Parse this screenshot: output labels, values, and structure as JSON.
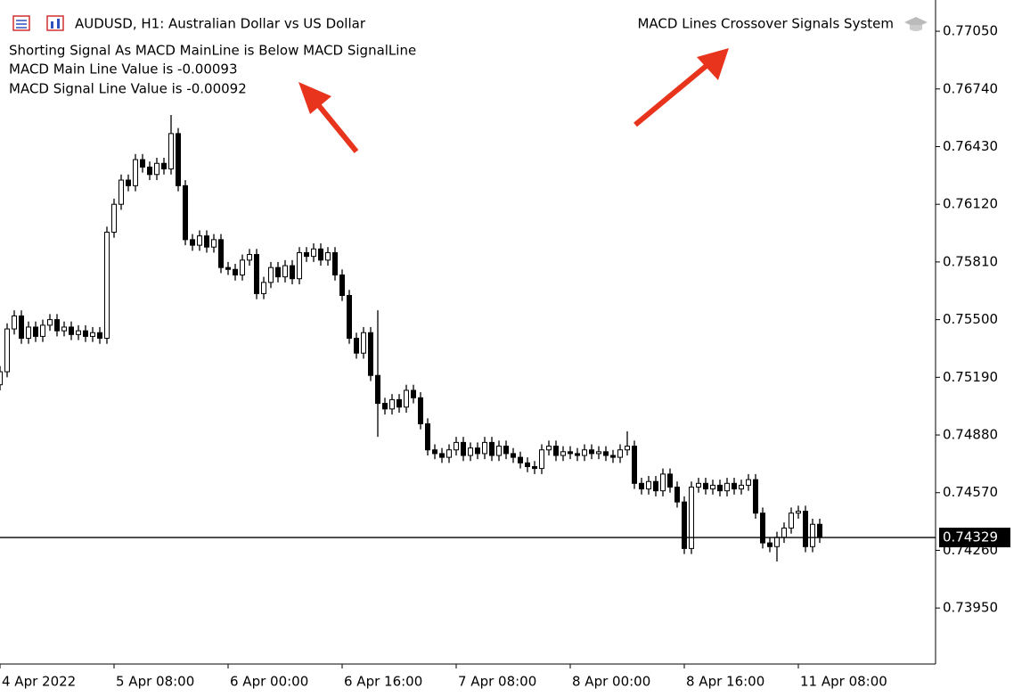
{
  "chart_data": {
    "type": "candlestick",
    "title": "AUDUSD, H1:  Australian Dollar vs US Dollar",
    "indicator_name": "MACD Lines Crossover Signals System",
    "comments": [
      "Shorting Signal As MACD MainLine is Below MACD SignalLine",
      "MACD Main Line Value is -0.00093",
      "MACD Signal Line Value is -0.00092"
    ],
    "categories": [
      "4 Apr 2022",
      null,
      null,
      null,
      null,
      null,
      null,
      null,
      null,
      null,
      null,
      null,
      null,
      null,
      null,
      null,
      "5 Apr 08:00",
      null,
      null,
      null,
      null,
      null,
      null,
      null,
      null,
      null,
      null,
      null,
      null,
      null,
      null,
      null,
      "6 Apr 00:00",
      null,
      null,
      null,
      null,
      null,
      null,
      null,
      null,
      null,
      null,
      null,
      null,
      null,
      null,
      null,
      "6 Apr 16:00",
      null,
      null,
      null,
      null,
      null,
      null,
      null,
      null,
      null,
      null,
      null,
      null,
      null,
      null,
      null,
      "7 Apr 08:00",
      null,
      null,
      null,
      null,
      null,
      null,
      null,
      null,
      null,
      null,
      null,
      null,
      null,
      null,
      null,
      "8 Apr 00:00",
      null,
      null,
      null,
      null,
      null,
      null,
      null,
      null,
      null,
      null,
      null,
      null,
      null,
      null,
      null,
      "8 Apr 16:00",
      null,
      null,
      null,
      null,
      null,
      null,
      null,
      null,
      null,
      null,
      null,
      null,
      null,
      null,
      null,
      "11 Apr 08:00",
      null,
      null,
      null
    ],
    "open": [
      0.7515,
      0.7522,
      0.7545,
      0.7552,
      0.754,
      0.7546,
      0.7541,
      0.7547,
      0.755,
      0.7544,
      0.7546,
      0.7542,
      0.7544,
      0.7541,
      0.7543,
      0.754,
      0.7597,
      0.7612,
      0.7625,
      0.7622,
      0.7636,
      0.7632,
      0.7628,
      0.7634,
      0.7631,
      0.765,
      0.7622,
      0.7593,
      0.759,
      0.7595,
      0.7589,
      0.7593,
      0.7578,
      0.7577,
      0.7574,
      0.7582,
      0.7585,
      0.7564,
      0.757,
      0.7578,
      0.7573,
      0.7579,
      0.7572,
      0.7586,
      0.7584,
      0.7588,
      0.7582,
      0.7586,
      0.7574,
      0.7563,
      0.754,
      0.7532,
      0.7543,
      0.752,
      0.7505,
      0.7502,
      0.7507,
      0.7503,
      0.7512,
      0.7508,
      0.7494,
      0.748,
      0.7478,
      0.7476,
      0.748,
      0.7484,
      0.7477,
      0.7481,
      0.7478,
      0.7484,
      0.7477,
      0.7482,
      0.7478,
      0.7476,
      0.7473,
      0.7471,
      0.747,
      0.748,
      0.7482,
      0.7477,
      0.7479,
      0.7478,
      0.7477,
      0.748,
      0.7478,
      0.7479,
      0.7477,
      0.7476,
      0.748,
      0.7482,
      0.7462,
      0.7459,
      0.7463,
      0.7458,
      0.7467,
      0.746,
      0.7452,
      0.7427,
      0.746,
      0.7462,
      0.7459,
      0.7461,
      0.7458,
      0.7462,
      0.7459,
      0.7461,
      0.7464,
      0.7446,
      0.743,
      0.7428,
      0.7433,
      0.7438,
      0.7446,
      0.7447,
      0.7428,
      0.744
    ],
    "high": [
      0.7525,
      0.7548,
      0.7555,
      0.7555,
      0.7549,
      0.7549,
      0.755,
      0.7553,
      0.7553,
      0.7549,
      0.7549,
      0.7547,
      0.7547,
      0.7546,
      0.7546,
      0.76,
      0.7615,
      0.7628,
      0.7628,
      0.7639,
      0.7639,
      0.7635,
      0.7637,
      0.7637,
      0.766,
      0.7653,
      0.7625,
      0.7596,
      0.7598,
      0.7598,
      0.7596,
      0.7596,
      0.7581,
      0.758,
      0.7585,
      0.7588,
      0.7588,
      0.7573,
      0.7581,
      0.7581,
      0.7582,
      0.7582,
      0.7589,
      0.7589,
      0.7591,
      0.7591,
      0.7589,
      0.7589,
      0.7577,
      0.7566,
      0.7543,
      0.7546,
      0.7546,
      0.7555,
      0.7508,
      0.751,
      0.751,
      0.7515,
      0.7515,
      0.7511,
      0.7497,
      0.7483,
      0.7481,
      0.7483,
      0.7487,
      0.7487,
      0.7484,
      0.7484,
      0.7487,
      0.7487,
      0.7485,
      0.7485,
      0.7481,
      0.7479,
      0.7476,
      0.7474,
      0.7483,
      0.7485,
      0.7485,
      0.7482,
      0.7482,
      0.7481,
      0.7483,
      0.7483,
      0.7482,
      0.7482,
      0.748,
      0.7483,
      0.749,
      0.7485,
      0.7465,
      0.7466,
      0.7466,
      0.747,
      0.747,
      0.7463,
      0.7455,
      0.7463,
      0.7465,
      0.7465,
      0.7464,
      0.7464,
      0.7465,
      0.7465,
      0.7464,
      0.7467,
      0.7467,
      0.7449,
      0.7433,
      0.7436,
      0.7441,
      0.7449,
      0.745,
      0.745,
      0.7443,
      0.7443
    ],
    "low": [
      0.7512,
      0.7519,
      0.7542,
      0.7537,
      0.7537,
      0.7538,
      0.7538,
      0.7544,
      0.7541,
      0.7541,
      0.7539,
      0.7539,
      0.7538,
      0.7538,
      0.7537,
      0.7537,
      0.7594,
      0.7609,
      0.7619,
      0.7619,
      0.7629,
      0.7625,
      0.7625,
      0.7628,
      0.7628,
      0.7619,
      0.759,
      0.7587,
      0.7587,
      0.7586,
      0.7586,
      0.7575,
      0.7574,
      0.7571,
      0.7571,
      0.7579,
      0.7561,
      0.7561,
      0.7567,
      0.757,
      0.757,
      0.7569,
      0.7569,
      0.7581,
      0.7581,
      0.7579,
      0.7579,
      0.7571,
      0.756,
      0.7537,
      0.7529,
      0.7529,
      0.7517,
      0.7487,
      0.7499,
      0.7499,
      0.75,
      0.75,
      0.7505,
      0.7491,
      0.7477,
      0.7475,
      0.7473,
      0.7473,
      0.7477,
      0.7474,
      0.7474,
      0.7475,
      0.7475,
      0.7474,
      0.7474,
      0.7475,
      0.7473,
      0.747,
      0.7468,
      0.7467,
      0.7467,
      0.7477,
      0.7474,
      0.7474,
      0.7475,
      0.7474,
      0.7474,
      0.7475,
      0.7475,
      0.7474,
      0.7473,
      0.7473,
      0.7477,
      0.7459,
      0.7456,
      0.7456,
      0.7455,
      0.7455,
      0.7457,
      0.7449,
      0.7424,
      0.7424,
      0.7457,
      0.7456,
      0.7456,
      0.7455,
      0.7455,
      0.7456,
      0.7456,
      0.7458,
      0.7443,
      0.7427,
      0.7425,
      0.742,
      0.743,
      0.7435,
      0.7443,
      0.7425,
      0.7425,
      0.743
    ],
    "close": [
      0.7522,
      0.7545,
      0.7552,
      0.754,
      0.7546,
      0.7541,
      0.7547,
      0.755,
      0.7544,
      0.7546,
      0.7542,
      0.7544,
      0.7541,
      0.7543,
      0.754,
      0.7597,
      0.7612,
      0.7625,
      0.7622,
      0.7636,
      0.7632,
      0.7628,
      0.7634,
      0.7631,
      0.765,
      0.7622,
      0.7593,
      0.759,
      0.7595,
      0.7589,
      0.7593,
      0.7578,
      0.7577,
      0.7574,
      0.7582,
      0.7585,
      0.7564,
      0.757,
      0.7578,
      0.7573,
      0.7579,
      0.7572,
      0.7586,
      0.7584,
      0.7588,
      0.7582,
      0.7586,
      0.7574,
      0.7563,
      0.754,
      0.7532,
      0.7543,
      0.752,
      0.7505,
      0.7502,
      0.7507,
      0.7503,
      0.7512,
      0.7508,
      0.7494,
      0.748,
      0.7478,
      0.7476,
      0.748,
      0.7484,
      0.7477,
      0.7481,
      0.7478,
      0.7484,
      0.7477,
      0.7482,
      0.7478,
      0.7476,
      0.7473,
      0.7471,
      0.747,
      0.748,
      0.7482,
      0.7477,
      0.7479,
      0.7478,
      0.7477,
      0.748,
      0.7478,
      0.7479,
      0.7477,
      0.7476,
      0.748,
      0.7482,
      0.7462,
      0.7459,
      0.7463,
      0.7458,
      0.7467,
      0.746,
      0.7452,
      0.7427,
      0.746,
      0.7462,
      0.7459,
      0.7461,
      0.7458,
      0.7462,
      0.7459,
      0.7461,
      0.7464,
      0.7446,
      0.743,
      0.7428,
      0.7433,
      0.7438,
      0.7446,
      0.7447,
      0.7428,
      0.744,
      0.74329
    ],
    "current_price": 0.74329,
    "ylim": [
      0.73649,
      0.77218
    ],
    "yticks": [
      {
        "value": 0.7705,
        "label": "0.77050"
      },
      {
        "value": 0.7674,
        "label": "0.76740"
      },
      {
        "value": 0.7643,
        "label": "0.76430"
      },
      {
        "value": 0.7612,
        "label": "0.76120"
      },
      {
        "value": 0.7581,
        "label": "0.75810"
      },
      {
        "value": 0.755,
        "label": "0.75500"
      },
      {
        "value": 0.7519,
        "label": "0.75190"
      },
      {
        "value": 0.7488,
        "label": "0.74880"
      },
      {
        "value": 0.7457,
        "label": "0.74570"
      },
      {
        "value": 0.7426,
        "label": "0.74260"
      },
      {
        "value": 0.7395,
        "label": "0.73950"
      }
    ],
    "up_color": "#ffffff",
    "down_color": "#000000"
  }
}
